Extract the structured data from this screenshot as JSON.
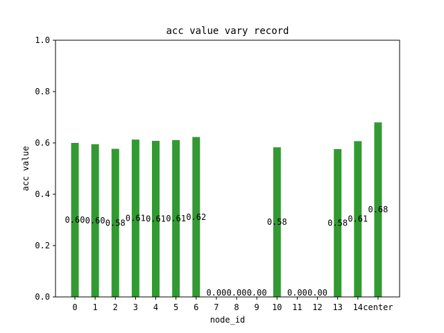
{
  "chart_data": {
    "type": "bar",
    "title": "acc value vary record",
    "xlabel": "node_id",
    "ylabel": "acc value",
    "ylim": [
      0,
      1.0
    ],
    "y_ticks": [
      "0.0",
      "0.2",
      "0.4",
      "0.6",
      "0.8",
      "1.0"
    ],
    "categories": [
      "0",
      "1",
      "2",
      "3",
      "4",
      "5",
      "6",
      "7",
      "8",
      "9",
      "10",
      "11",
      "12",
      "13",
      "14",
      "center"
    ],
    "values": [
      0.6,
      0.595,
      0.577,
      0.613,
      0.608,
      0.611,
      0.623,
      0.0,
      0.0,
      0.0,
      0.583,
      0.0,
      0.0,
      0.576,
      0.607,
      0.68
    ],
    "data_labels": [
      "0.60",
      "0.60",
      "0.58",
      "0.61",
      "0.61",
      "0.61",
      "0.62",
      "0.00",
      "0.00",
      "0.00",
      "0.58",
      "0.00",
      "0.00",
      "0.58",
      "0.61",
      "0.68"
    ],
    "bar_color": "#339933",
    "grid": false,
    "legend": false
  }
}
